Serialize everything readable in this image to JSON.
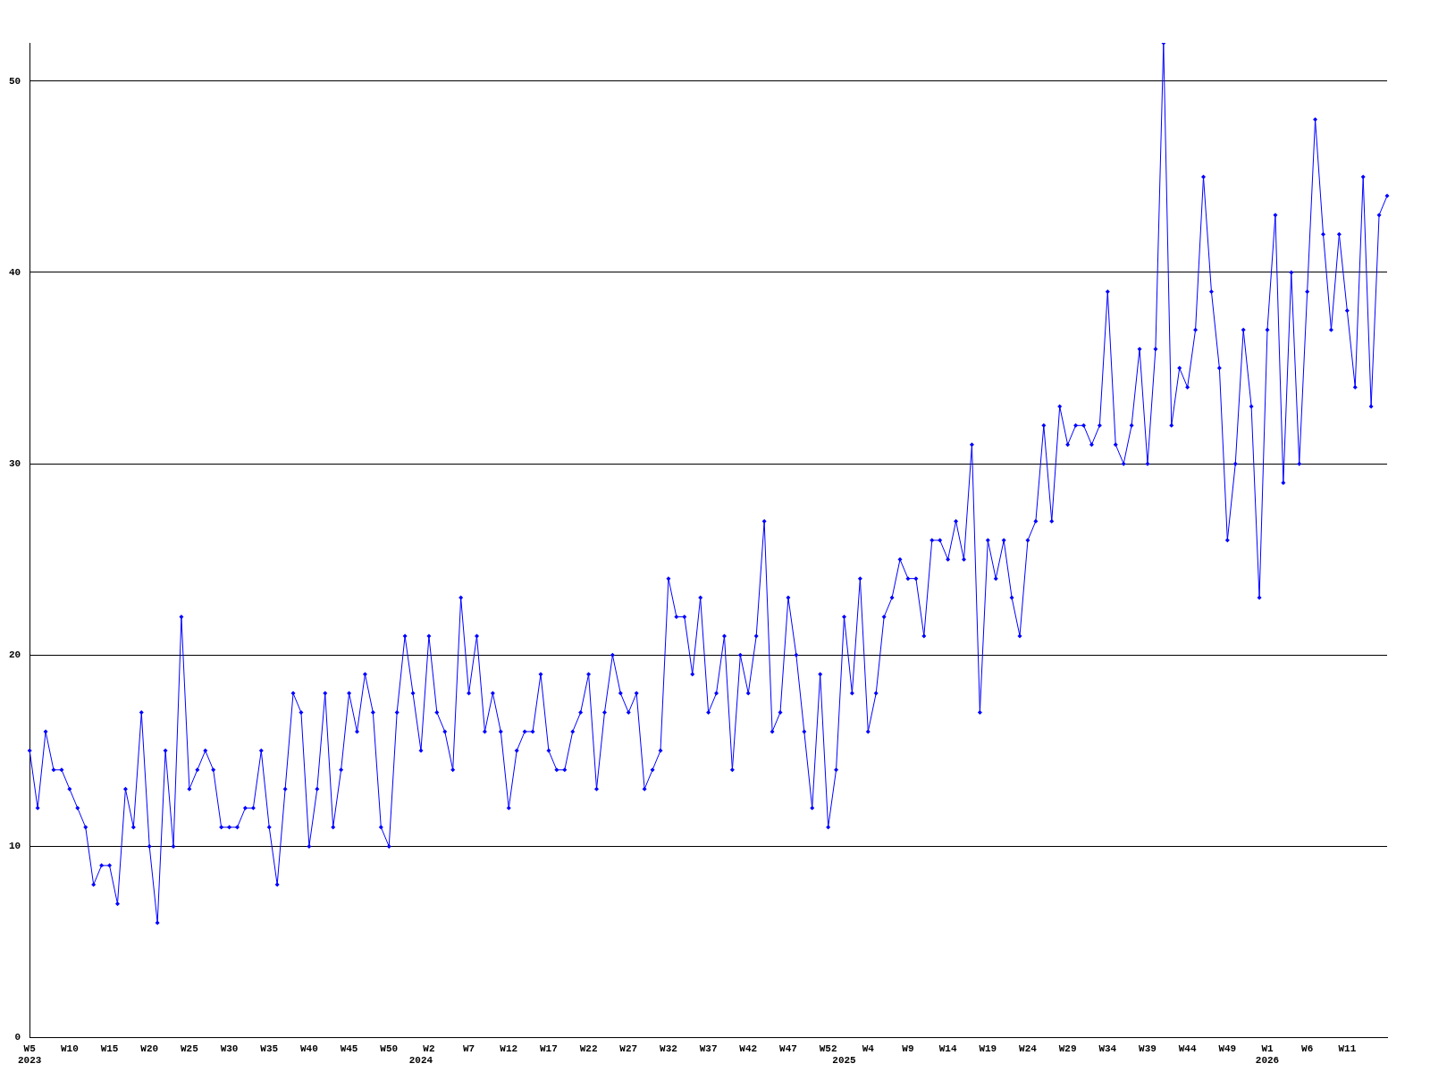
{
  "chart_data": {
    "type": "line",
    "categories": [
      "W5\n2023",
      null,
      null,
      null,
      null,
      "W10",
      null,
      null,
      null,
      null,
      "W15",
      null,
      null,
      null,
      null,
      "W20",
      null,
      null,
      null,
      null,
      "W25",
      null,
      null,
      null,
      null,
      "W30",
      null,
      null,
      null,
      null,
      "W35",
      null,
      null,
      null,
      null,
      "W40",
      null,
      null,
      null,
      null,
      "W45",
      null,
      null,
      null,
      null,
      "W50",
      null,
      null,
      null,
      "\n2024",
      "W2",
      null,
      null,
      null,
      null,
      "W7",
      null,
      null,
      null,
      null,
      "W12",
      null,
      null,
      null,
      null,
      "W17",
      null,
      null,
      null,
      null,
      "W22",
      null,
      null,
      null,
      null,
      "W27",
      null,
      null,
      null,
      null,
      "W32",
      null,
      null,
      null,
      null,
      "W37",
      null,
      null,
      null,
      null,
      "W42",
      null,
      null,
      null,
      null,
      "W47",
      null,
      null,
      null,
      null,
      "W52",
      null,
      "\n2025",
      null,
      null,
      "W4",
      null,
      null,
      null,
      null,
      "W9",
      null,
      null,
      null,
      null,
      "W14",
      null,
      null,
      null,
      null,
      "W19",
      null,
      null,
      null,
      null,
      "W24",
      null,
      null,
      null,
      null,
      "W29",
      null,
      null,
      null,
      null,
      "W34",
      null,
      null,
      null,
      null,
      "W39",
      null,
      null,
      null,
      null,
      "W44",
      null,
      null,
      null,
      null,
      "W49",
      null,
      null,
      null,
      null,
      "W1\n2026",
      null,
      null,
      null,
      null,
      "W6",
      null,
      null,
      null,
      null,
      "W11",
      null,
      null,
      null,
      null,
      null
    ],
    "series": [
      {
        "color": "#0000ff",
        "values": [
          15,
          12,
          16,
          14,
          14,
          13,
          12,
          11,
          8,
          9,
          9,
          7,
          13,
          11,
          17,
          10,
          6,
          15,
          10,
          22,
          13,
          14,
          15,
          14,
          11,
          11,
          11,
          12,
          12,
          15,
          11,
          8,
          13,
          18,
          17,
          10,
          13,
          18,
          11,
          14,
          18,
          16,
          19,
          17,
          11,
          10,
          17,
          21,
          18,
          15,
          21,
          17,
          16,
          14,
          23,
          18,
          21,
          16,
          18,
          16,
          12,
          15,
          16,
          16,
          19,
          15,
          14,
          14,
          16,
          17,
          19,
          13,
          17,
          20,
          18,
          17,
          18,
          13,
          14,
          15,
          24,
          22,
          22,
          19,
          23,
          17,
          18,
          21,
          14,
          20,
          18,
          21,
          27,
          16,
          17,
          23,
          20,
          16,
          12,
          19,
          11,
          14,
          22,
          18,
          24,
          16,
          18,
          22,
          23,
          25,
          24,
          24,
          21,
          26,
          26,
          25,
          27,
          25,
          31,
          17,
          26,
          24,
          26,
          23,
          21,
          26,
          27,
          32,
          27,
          33,
          31,
          32,
          32,
          31,
          32,
          39,
          31,
          30,
          32,
          36,
          30,
          36,
          52,
          32,
          35,
          34,
          37,
          45,
          39,
          35,
          26,
          30,
          37,
          33,
          23,
          37,
          43,
          29,
          40,
          30,
          39,
          48,
          42,
          37,
          42,
          38,
          34,
          45,
          33,
          43,
          44
        ]
      }
    ],
    "ylim": [
      0,
      52
    ],
    "yticks": [
      0,
      10,
      20,
      30,
      40,
      50
    ],
    "grid": "y",
    "legend": false,
    "marker": "diamond",
    "line_style": "solid"
  }
}
